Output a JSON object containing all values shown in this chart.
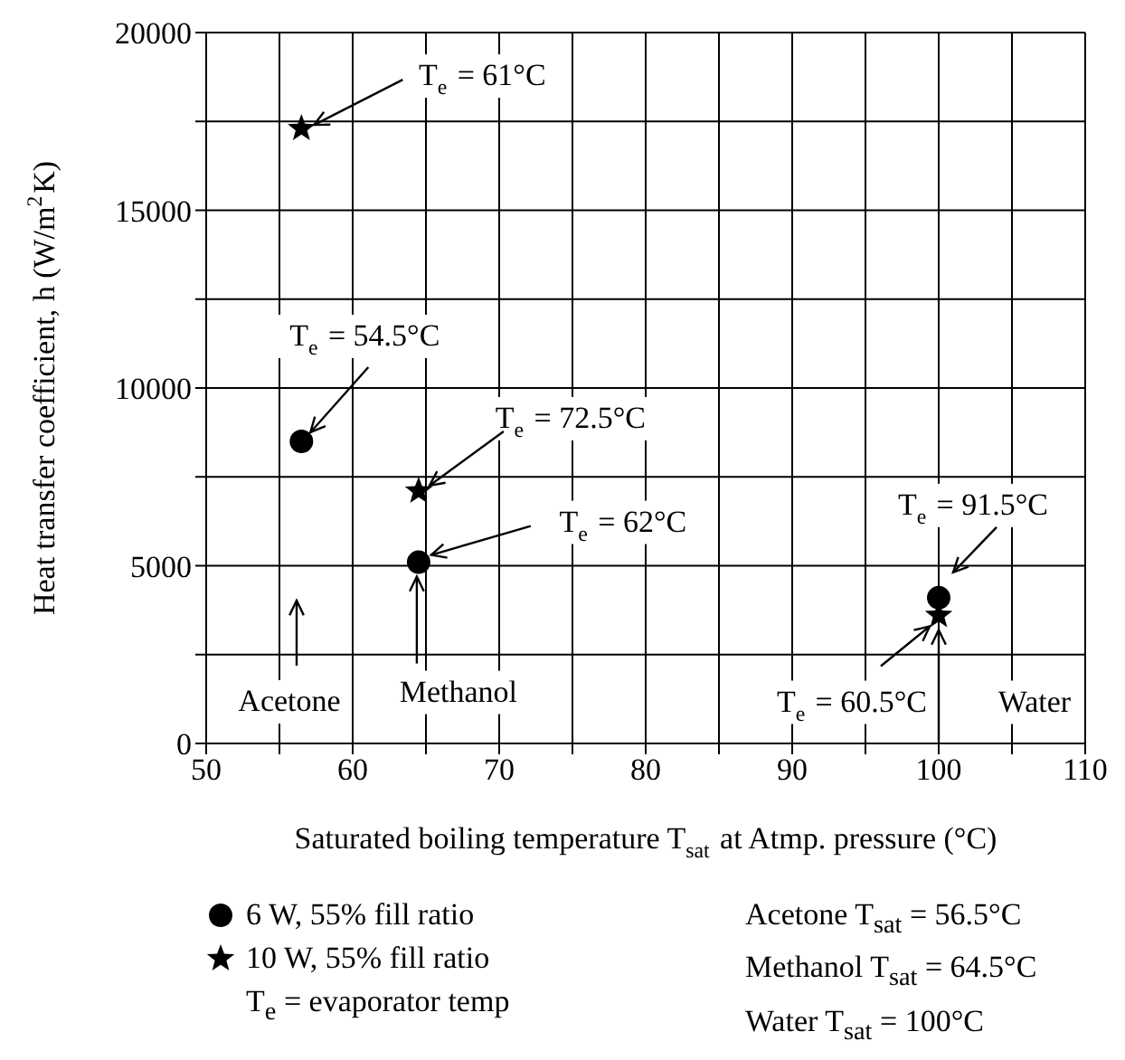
{
  "chart_data": {
    "type": "scatter",
    "xlabel": "Saturated boiling temperature T$_{sat}$ at Atmp. pressure (°C)",
    "ylabel": "Heat transfer coefficient,  h (W/m$^{2}$K)",
    "x": [
      56.5,
      64.5,
      100
    ],
    "series": [
      {
        "name": "6 W, 55% fill ratio",
        "color": "#000000",
        "marker": "circle",
        "values": [
          8500,
          5100,
          4100
        ]
      },
      {
        "name": "10 W, 55% fill ratio",
        "color": "#000000",
        "marker": "star",
        "values": [
          17300,
          7100,
          3600
        ]
      }
    ],
    "xlim": [
      50,
      110
    ],
    "xticks": [
      50,
      {
        "value": 55,
        "label": null
      },
      60,
      {
        "value": 65,
        "label": null
      },
      70,
      {
        "value": 75,
        "label": null
      },
      80,
      {
        "value": 85,
        "label": null
      },
      90,
      {
        "value": 95,
        "label": null
      },
      100,
      {
        "value": 105,
        "label": null
      },
      110
    ],
    "ylim": [
      0,
      20000
    ],
    "yticks": [
      0,
      {
        "value": 2500,
        "label": null
      },
      5000,
      {
        "value": 7500,
        "label": null
      },
      10000,
      {
        "value": 12500,
        "label": null
      },
      15000,
      {
        "value": 17500,
        "label": null
      },
      20000
    ],
    "grid": true,
    "legend": "bottom",
    "annotations": [
      {
        "text": "T$_{e}$ = 61°C",
        "x": 56.5,
        "y": 17300
      },
      {
        "text": "T$_{e}$ = 54.5°C",
        "x": 56.5,
        "y": 8500
      },
      {
        "text": "T$_{e}$ = 72.5°C",
        "x": 64.5,
        "y": 7100
      },
      {
        "text": "T$_{e}$ = 62°C",
        "x": 64.5,
        "y": 5100
      },
      {
        "text": "T$_{e}$ = 91.5°C",
        "x": 100,
        "y": 4100
      },
      {
        "text": "T$_{e}$ = 60.5°C",
        "x": 100,
        "y": 3600
      },
      "Acetone",
      {
        "text": "Methanol",
        "x": 64.5,
        "y": 5100
      },
      {
        "text": "Water",
        "x": 100,
        "y": 3600
      },
      "T$_{e}$ = evaporator temp",
      "Acetone T$_{sat}$ = 56.5°C",
      "Methanol T$_{sat}$ = 64.5°C",
      "Water T$_{sat}$ = 100°C"
    ]
  }
}
